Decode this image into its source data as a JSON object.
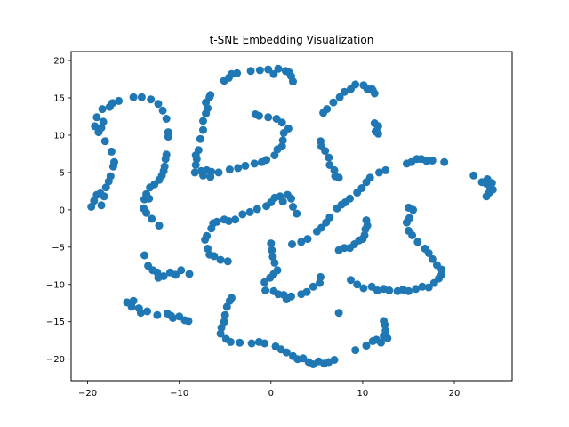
{
  "chart_data": {
    "type": "scatter",
    "title": "t-SNE Embedding Visualization",
    "xlabel": "",
    "ylabel": "",
    "xlim": [
      -21.8,
      26.3
    ],
    "ylim": [
      -22.9,
      21.2
    ],
    "xticks": [
      -20,
      -10,
      0,
      10,
      20
    ],
    "yticks": [
      -20,
      -15,
      -10,
      -5,
      0,
      5,
      10,
      15,
      20
    ],
    "grid": false,
    "marker_color": "#1f77b4",
    "points": [
      [
        -19.6,
        0.4
      ],
      [
        -19.3,
        1.2
      ],
      [
        -19.0,
        2.0
      ],
      [
        -18.6,
        2.2
      ],
      [
        -18.5,
        0.6
      ],
      [
        -18.2,
        1.8
      ],
      [
        -18.0,
        3.0
      ],
      [
        -17.7,
        3.8
      ],
      [
        -17.5,
        4.5
      ],
      [
        -17.2,
        5.8
      ],
      [
        -17.1,
        6.4
      ],
      [
        -17.4,
        7.8
      ],
      [
        -18.1,
        9.2
      ],
      [
        -18.8,
        10.4
      ],
      [
        -19.2,
        11.2
      ],
      [
        -18.5,
        11.0
      ],
      [
        -18.3,
        11.8
      ],
      [
        -19.0,
        12.4
      ],
      [
        -18.4,
        13.5
      ],
      [
        -17.6,
        13.8
      ],
      [
        -17.3,
        14.3
      ],
      [
        -16.6,
        14.6
      ],
      [
        -15.0,
        15.1
      ],
      [
        -14.1,
        15.1
      ],
      [
        -13.1,
        14.8
      ],
      [
        -12.3,
        14.2
      ],
      [
        -11.8,
        13.3
      ],
      [
        -11.4,
        12.2
      ],
      [
        -11.2,
        10.4
      ],
      [
        -11.2,
        9.8
      ],
      [
        -11.4,
        7.4
      ],
      [
        -11.5,
        6.8
      ],
      [
        -11.6,
        5.8
      ],
      [
        -11.7,
        5.2
      ],
      [
        -11.9,
        4.6
      ],
      [
        -12.2,
        4.0
      ],
      [
        -12.7,
        3.4
      ],
      [
        -13.2,
        3.0
      ],
      [
        -13.6,
        2.1
      ],
      [
        -13.8,
        1.4
      ],
      [
        -13.3,
        1.5
      ],
      [
        -13.9,
        0.2
      ],
      [
        -13.6,
        -0.4
      ],
      [
        -13.0,
        -1.2
      ],
      [
        -12.2,
        -2.1
      ],
      [
        -13.8,
        -6.1
      ],
      [
        -13.4,
        -7.5
      ],
      [
        -12.9,
        -8.1
      ],
      [
        -12.4,
        -8.4
      ],
      [
        -11.7,
        -8.9
      ],
      [
        -12.3,
        -9.1
      ],
      [
        -11.0,
        -8.4
      ],
      [
        -10.4,
        -8.7
      ],
      [
        -9.8,
        -8.1
      ],
      [
        -8.9,
        -8.6
      ],
      [
        -15.7,
        -12.4
      ],
      [
        -15.0,
        -12.2
      ],
      [
        -15.2,
        -13.0
      ],
      [
        -14.4,
        -13.2
      ],
      [
        -14.2,
        -13.8
      ],
      [
        -13.5,
        -13.6
      ],
      [
        -12.4,
        -14.1
      ],
      [
        -11.3,
        -13.9
      ],
      [
        -10.9,
        -14.2
      ],
      [
        -10.7,
        -14.5
      ],
      [
        -10.0,
        -14.3
      ],
      [
        -9.4,
        -14.8
      ],
      [
        -9.0,
        -14.9
      ],
      [
        -8.3,
        5.0
      ],
      [
        -8.2,
        6.0
      ],
      [
        -8.1,
        6.8
      ],
      [
        -8.2,
        7.3
      ],
      [
        -7.9,
        8.0
      ],
      [
        -7.7,
        9.5
      ],
      [
        -7.4,
        10.7
      ],
      [
        -7.4,
        11.9
      ],
      [
        -7.1,
        12.9
      ],
      [
        -6.9,
        13.6
      ],
      [
        -7.1,
        14.4
      ],
      [
        -6.7,
        15.1
      ],
      [
        -6.6,
        15.4
      ],
      [
        -7.4,
        4.6
      ],
      [
        -7.6,
        5.2
      ],
      [
        -7.0,
        5.3
      ],
      [
        -6.5,
        5.1
      ],
      [
        -6.6,
        4.4
      ],
      [
        -5.7,
        5.0
      ],
      [
        -4.5,
        5.4
      ],
      [
        -3.6,
        5.6
      ],
      [
        -2.8,
        5.9
      ],
      [
        -1.8,
        6.2
      ],
      [
        -1.0,
        6.4
      ],
      [
        -0.5,
        6.7
      ],
      [
        0.4,
        7.3
      ],
      [
        0.7,
        8.1
      ],
      [
        1.2,
        8.5
      ],
      [
        1.3,
        9.3
      ],
      [
        1.4,
        10.3
      ],
      [
        1.9,
        10.9
      ],
      [
        1.2,
        11.7
      ],
      [
        0.6,
        12.2
      ],
      [
        -0.3,
        12.4
      ],
      [
        -1.3,
        12.6
      ],
      [
        -1.7,
        12.8
      ],
      [
        -5.1,
        17.3
      ],
      [
        -4.6,
        17.7
      ],
      [
        -4.3,
        18.2
      ],
      [
        -3.7,
        18.3
      ],
      [
        -2.2,
        18.6
      ],
      [
        -1.2,
        18.7
      ],
      [
        -0.3,
        18.8
      ],
      [
        0.3,
        18.2
      ],
      [
        0.8,
        18.9
      ],
      [
        1.6,
        18.6
      ],
      [
        2.0,
        18.4
      ],
      [
        2.2,
        17.9
      ],
      [
        2.4,
        17.2
      ],
      [
        -6.5,
        -2.5
      ],
      [
        -6.3,
        -1.8
      ],
      [
        -5.9,
        -1.6
      ],
      [
        -5.1,
        -1.3
      ],
      [
        -4.6,
        -1.5
      ],
      [
        -3.9,
        -1.3
      ],
      [
        -3.1,
        -0.6
      ],
      [
        -2.3,
        -0.3
      ],
      [
        -1.5,
        0.1
      ],
      [
        -0.5,
        0.5
      ],
      [
        0.0,
        1.0
      ],
      [
        0.4,
        1.6
      ],
      [
        1.0,
        1.8
      ],
      [
        1.3,
        1.1
      ],
      [
        1.8,
        2.0
      ],
      [
        2.2,
        1.5
      ],
      [
        2.4,
        0.4
      ],
      [
        2.8,
        -0.5
      ],
      [
        -7.0,
        -3.5
      ],
      [
        -7.2,
        -4.0
      ],
      [
        -6.9,
        -5.2
      ],
      [
        -6.7,
        -6.0
      ],
      [
        -6.2,
        -6.2
      ],
      [
        -5.5,
        -6.7
      ],
      [
        -4.7,
        -6.9
      ],
      [
        2.3,
        -4.6
      ],
      [
        3.3,
        -4.3
      ],
      [
        4.0,
        -3.9
      ],
      [
        5.0,
        -2.9
      ],
      [
        5.5,
        -2.4
      ],
      [
        6.0,
        -1.7
      ],
      [
        6.4,
        -1.0
      ],
      [
        7.2,
        0.2
      ],
      [
        7.7,
        0.7
      ],
      [
        8.1,
        1.0
      ],
      [
        8.6,
        1.5
      ],
      [
        9.4,
        2.3
      ],
      [
        9.9,
        2.9
      ],
      [
        10.4,
        3.7
      ],
      [
        10.8,
        4.3
      ],
      [
        11.8,
        5.0
      ],
      [
        12.5,
        5.3
      ],
      [
        0.0,
        -4.5
      ],
      [
        0.1,
        -5.4
      ],
      [
        0.2,
        -6.3
      ],
      [
        0.4,
        -7.1
      ],
      [
        0.7,
        -8.1
      ],
      [
        0.3,
        -8.6
      ],
      [
        -0.1,
        -9.1
      ],
      [
        -0.7,
        -9.7
      ],
      [
        -0.6,
        -10.8
      ],
      [
        0.3,
        -10.9
      ],
      [
        0.8,
        -11.3
      ],
      [
        1.4,
        -11.4
      ],
      [
        1.7,
        -12.0
      ],
      [
        2.2,
        -11.6
      ],
      [
        3.3,
        -11.3
      ],
      [
        3.9,
        -11.0
      ],
      [
        4.6,
        -10.3
      ],
      [
        5.3,
        -9.8
      ],
      [
        5.4,
        -9.0
      ],
      [
        7.4,
        -5.4
      ],
      [
        8.0,
        -5.1
      ],
      [
        8.6,
        -5.1
      ],
      [
        9.1,
        -4.6
      ],
      [
        9.6,
        -4.1
      ],
      [
        10.0,
        -3.9
      ],
      [
        10.2,
        -3.4
      ],
      [
        10.3,
        -2.6
      ],
      [
        10.5,
        -2.1
      ],
      [
        10.4,
        -1.4
      ],
      [
        7.4,
        -13.8
      ],
      [
        5.7,
        13.0
      ],
      [
        6.1,
        13.5
      ],
      [
        6.8,
        14.4
      ],
      [
        7.5,
        15.1
      ],
      [
        8.0,
        15.8
      ],
      [
        8.7,
        16.2
      ],
      [
        9.2,
        16.8
      ],
      [
        10.1,
        16.7
      ],
      [
        10.5,
        16.2
      ],
      [
        11.1,
        16.0
      ],
      [
        11.3,
        15.6
      ],
      [
        11.0,
        16.2
      ],
      [
        5.4,
        9.2
      ],
      [
        5.5,
        8.5
      ],
      [
        5.9,
        7.9
      ],
      [
        6.3,
        7.0
      ],
      [
        6.4,
        6.0
      ],
      [
        6.9,
        5.3
      ],
      [
        7.0,
        4.5
      ],
      [
        7.4,
        4.3
      ],
      [
        11.3,
        11.6
      ],
      [
        11.7,
        11.2
      ],
      [
        11.4,
        10.5
      ],
      [
        11.7,
        10.2
      ],
      [
        8.7,
        -9.4
      ],
      [
        9.4,
        -10.0
      ],
      [
        10.1,
        -10.5
      ],
      [
        11.0,
        -10.3
      ],
      [
        11.6,
        -10.8
      ],
      [
        12.3,
        -10.6
      ],
      [
        12.9,
        -10.8
      ],
      [
        13.8,
        -10.9
      ],
      [
        14.4,
        -10.7
      ],
      [
        15.0,
        -10.9
      ],
      [
        15.8,
        -10.6
      ],
      [
        16.5,
        -10.3
      ],
      [
        17.2,
        -10.4
      ],
      [
        17.8,
        -9.8
      ],
      [
        18.3,
        -9.2
      ],
      [
        18.6,
        -8.7
      ],
      [
        18.6,
        -8.0
      ],
      [
        18.1,
        -7.4
      ],
      [
        17.6,
        -6.6
      ],
      [
        17.2,
        -5.8
      ],
      [
        16.8,
        -5.2
      ],
      [
        16.0,
        -4.3
      ],
      [
        15.4,
        -3.4
      ],
      [
        15.0,
        -2.8
      ],
      [
        14.8,
        -1.7
      ],
      [
        15.1,
        -1.1
      ],
      [
        15.5,
        0.0
      ],
      [
        15.0,
        0.3
      ],
      [
        14.8,
        6.2
      ],
      [
        15.3,
        6.4
      ],
      [
        15.9,
        6.8
      ],
      [
        16.4,
        6.8
      ],
      [
        17.0,
        6.5
      ],
      [
        17.6,
        6.6
      ],
      [
        18.9,
        6.4
      ],
      [
        22.1,
        4.6
      ],
      [
        23.0,
        3.7
      ],
      [
        23.5,
        3.5
      ],
      [
        23.9,
        3.1
      ],
      [
        24.1,
        3.6
      ],
      [
        23.6,
        4.1
      ],
      [
        23.8,
        2.3
      ],
      [
        23.5,
        1.8
      ],
      [
        24.2,
        2.7
      ],
      [
        -5.4,
        -15.8
      ],
      [
        -5.1,
        -15.0
      ],
      [
        -5.0,
        -14.1
      ],
      [
        -4.8,
        -13.0
      ],
      [
        -4.5,
        -12.2
      ],
      [
        -4.3,
        -11.8
      ],
      [
        -5.5,
        -16.6
      ],
      [
        -4.9,
        -17.3
      ],
      [
        -4.4,
        -17.7
      ],
      [
        -3.4,
        -17.8
      ],
      [
        -2.1,
        -17.9
      ],
      [
        -1.3,
        -17.7
      ],
      [
        -0.7,
        -17.9
      ],
      [
        0.5,
        -18.3
      ],
      [
        1.1,
        -18.7
      ],
      [
        1.7,
        -19.1
      ],
      [
        2.4,
        -19.6
      ],
      [
        2.9,
        -20.0
      ],
      [
        3.5,
        -19.9
      ],
      [
        4.1,
        -20.4
      ],
      [
        4.6,
        -20.7
      ],
      [
        5.2,
        -20.3
      ],
      [
        5.8,
        -20.6
      ],
      [
        6.3,
        -20.4
      ],
      [
        6.9,
        -20.1
      ],
      [
        9.2,
        -18.8
      ],
      [
        10.4,
        -18.2
      ],
      [
        11.1,
        -17.6
      ],
      [
        11.5,
        -17.4
      ],
      [
        12.0,
        -17.8
      ],
      [
        12.3,
        -16.9
      ],
      [
        12.5,
        -16.2
      ],
      [
        12.4,
        -15.4
      ],
      [
        12.3,
        -14.9
      ],
      [
        12.7,
        -17.2
      ]
    ]
  }
}
